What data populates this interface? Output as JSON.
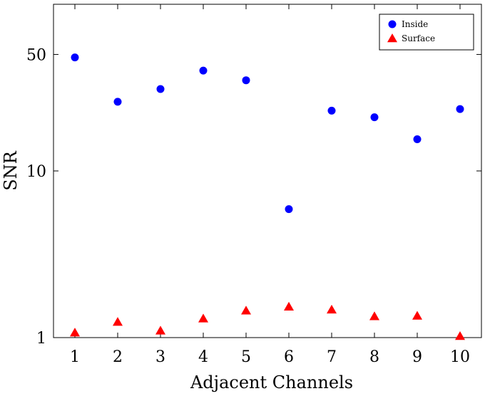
{
  "chart_data": {
    "type": "scatter",
    "xlabel": "Adjacent Channels",
    "ylabel": "SNR",
    "yscale": "log",
    "ylim": [
      1,
      100
    ],
    "xlim": [
      0.5,
      10.5
    ],
    "x_ticks": [
      1,
      2,
      3,
      4,
      5,
      6,
      7,
      8,
      9,
      10
    ],
    "y_ticks": [
      1,
      10,
      50
    ],
    "grid": false,
    "legend_position": "top-right",
    "series": [
      {
        "name": "Inside",
        "marker": "circle",
        "color": "#0000ff",
        "x": [
          1,
          2,
          3,
          4,
          5,
          6,
          7,
          8,
          9,
          10
        ],
        "values": [
          48,
          26,
          31,
          40,
          35,
          5.9,
          23,
          21,
          15.5,
          23.5
        ]
      },
      {
        "name": "Surface",
        "marker": "triangle",
        "color": "#ff0000",
        "x": [
          1,
          2,
          3,
          4,
          5,
          6,
          7,
          8,
          9,
          10
        ],
        "values": [
          1.07,
          1.24,
          1.1,
          1.3,
          1.45,
          1.53,
          1.47,
          1.34,
          1.35,
          1.02
        ]
      }
    ]
  }
}
